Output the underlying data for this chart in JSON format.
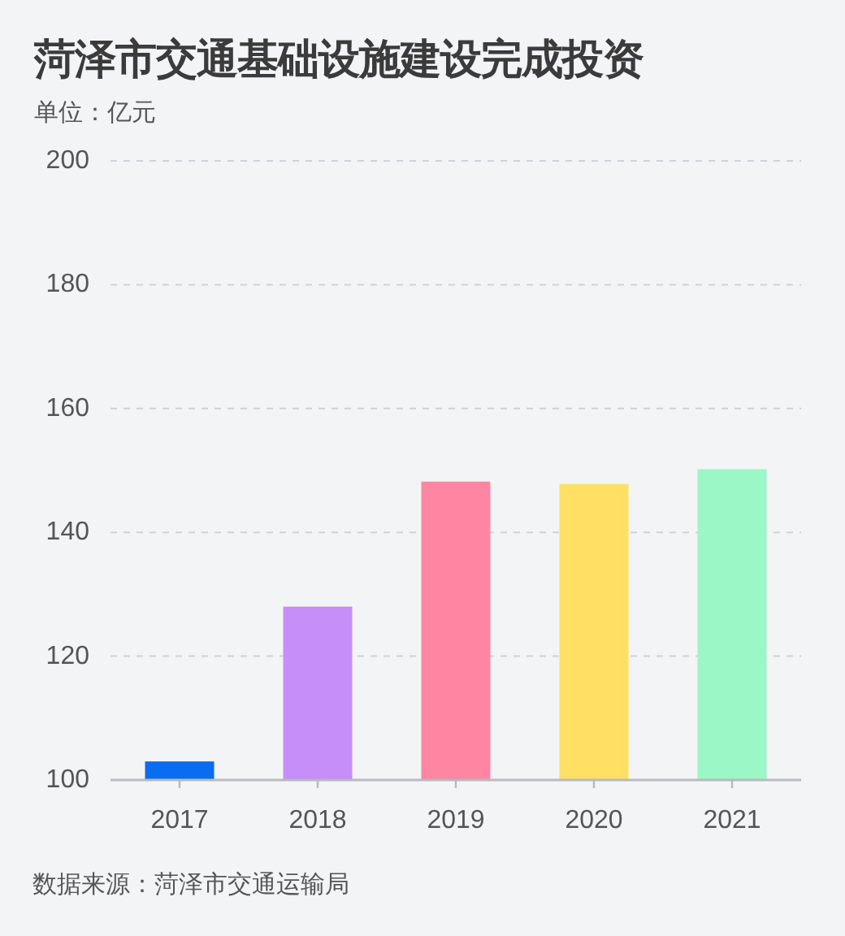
{
  "chart_data": {
    "type": "bar",
    "title": "菏泽市交通基础设施建设完成投资",
    "subtitle": "单位：亿元",
    "categories": [
      "2017",
      "2018",
      "2019",
      "2020",
      "2021"
    ],
    "values": [
      103,
      128,
      148.2,
      147.8,
      150.2
    ],
    "colors": [
      "#0a6cf0",
      "#c58ef9",
      "#ff86a3",
      "#ffe063",
      "#9cf7c6"
    ],
    "ylim": [
      100,
      200
    ],
    "yticks": [
      100,
      120,
      140,
      160,
      180,
      200
    ],
    "grid": "y",
    "annotations": [
      "数据来源：菏泽市交通运输局"
    ]
  }
}
